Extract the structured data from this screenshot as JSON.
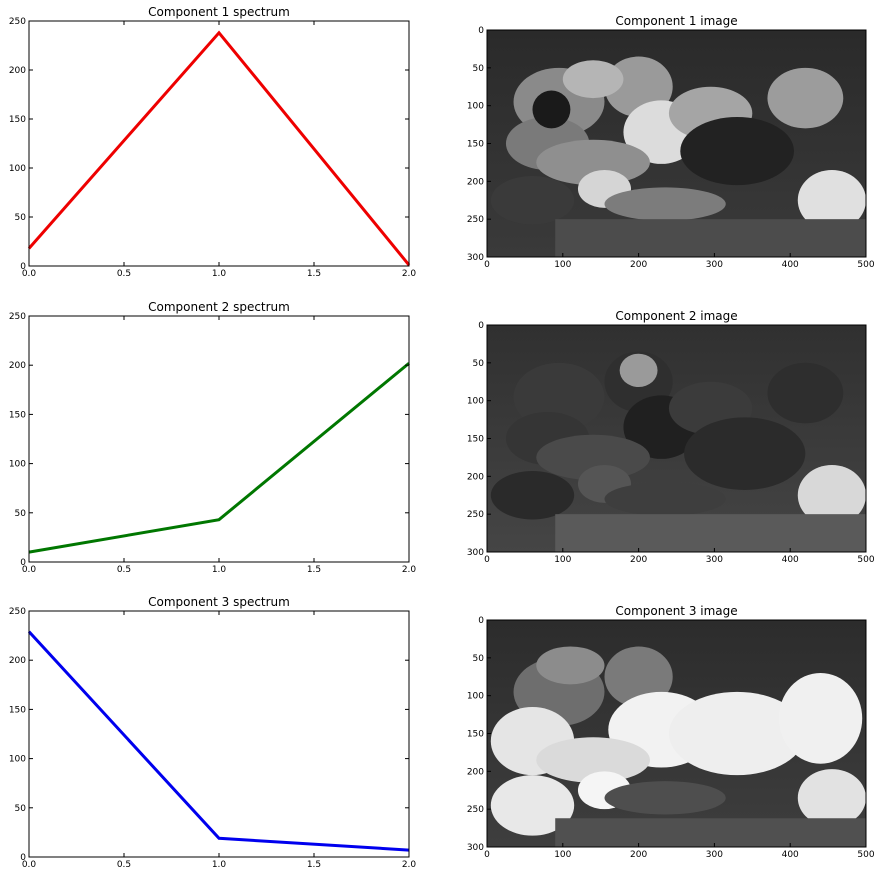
{
  "chart_data": [
    {
      "type": "line",
      "title": "Component 1 spectrum",
      "xlabel": "",
      "ylabel": "",
      "x": [
        0,
        1,
        2
      ],
      "series": [
        {
          "values": [
            18,
            238,
            1
          ]
        }
      ],
      "color": "#ee0000",
      "xlim": [
        0,
        2
      ],
      "ylim": [
        0,
        250
      ],
      "xticks": [
        0.0,
        0.5,
        1.0,
        1.5,
        2.0
      ],
      "xtick_labels": [
        "0.0",
        "0.5",
        "1.0",
        "1.5",
        "2.0"
      ],
      "yticks": [
        0,
        50,
        100,
        150,
        200,
        250
      ],
      "ytick_labels": [
        "0",
        "50",
        "100",
        "150",
        "200",
        "250"
      ],
      "grid": false
    },
    {
      "type": "heatmap",
      "title": "Component 1 image",
      "xlim": [
        0,
        500
      ],
      "ylim": [
        0,
        300
      ],
      "y_inverted": true,
      "xticks": [
        0,
        100,
        200,
        300,
        400,
        500
      ],
      "xtick_labels": [
        "0",
        "100",
        "200",
        "300",
        "400",
        "500"
      ],
      "yticks": [
        0,
        50,
        100,
        150,
        200,
        250,
        300
      ],
      "ytick_labels": [
        "0",
        "50",
        "100",
        "150",
        "200",
        "250",
        "300"
      ],
      "colormap": "gray"
    },
    {
      "type": "line",
      "title": "Component 2 spectrum",
      "xlabel": "",
      "ylabel": "",
      "x": [
        0,
        1,
        2
      ],
      "series": [
        {
          "values": [
            10,
            43,
            202
          ]
        }
      ],
      "color": "#007700",
      "xlim": [
        0,
        2
      ],
      "ylim": [
        0,
        250
      ],
      "xticks": [
        0.0,
        0.5,
        1.0,
        1.5,
        2.0
      ],
      "xtick_labels": [
        "0.0",
        "0.5",
        "1.0",
        "1.5",
        "2.0"
      ],
      "yticks": [
        0,
        50,
        100,
        150,
        200,
        250
      ],
      "ytick_labels": [
        "0",
        "50",
        "100",
        "150",
        "200",
        "250"
      ],
      "grid": false
    },
    {
      "type": "heatmap",
      "title": "Component 2 image",
      "xlim": [
        0,
        500
      ],
      "ylim": [
        0,
        300
      ],
      "y_inverted": true,
      "xticks": [
        0,
        100,
        200,
        300,
        400,
        500
      ],
      "xtick_labels": [
        "0",
        "100",
        "200",
        "300",
        "400",
        "500"
      ],
      "yticks": [
        0,
        50,
        100,
        150,
        200,
        250,
        300
      ],
      "ytick_labels": [
        "0",
        "50",
        "100",
        "150",
        "200",
        "250",
        "300"
      ],
      "colormap": "gray"
    },
    {
      "type": "line",
      "title": "Component 3 spectrum",
      "xlabel": "",
      "ylabel": "",
      "x": [
        0,
        1,
        2
      ],
      "series": [
        {
          "values": [
            229,
            19,
            7
          ]
        }
      ],
      "color": "#0000ee",
      "xlim": [
        0,
        2
      ],
      "ylim": [
        0,
        250
      ],
      "xticks": [
        0.0,
        0.5,
        1.0,
        1.5,
        2.0
      ],
      "xtick_labels": [
        "0.0",
        "0.5",
        "1.0",
        "1.5",
        "2.0"
      ],
      "yticks": [
        0,
        50,
        100,
        150,
        200,
        250
      ],
      "ytick_labels": [
        "0",
        "50",
        "100",
        "150",
        "200",
        "250"
      ],
      "grid": false
    },
    {
      "type": "heatmap",
      "title": "Component 3 image",
      "xlim": [
        0,
        500
      ],
      "ylim": [
        0,
        300
      ],
      "y_inverted": true,
      "xticks": [
        0,
        100,
        200,
        300,
        400,
        500
      ],
      "xtick_labels": [
        "0",
        "100",
        "200",
        "300",
        "400",
        "500"
      ],
      "yticks": [
        0,
        50,
        100,
        150,
        200,
        250,
        300
      ],
      "ytick_labels": [
        "0",
        "50",
        "100",
        "150",
        "200",
        "250",
        "300"
      ],
      "colormap": "gray"
    }
  ]
}
